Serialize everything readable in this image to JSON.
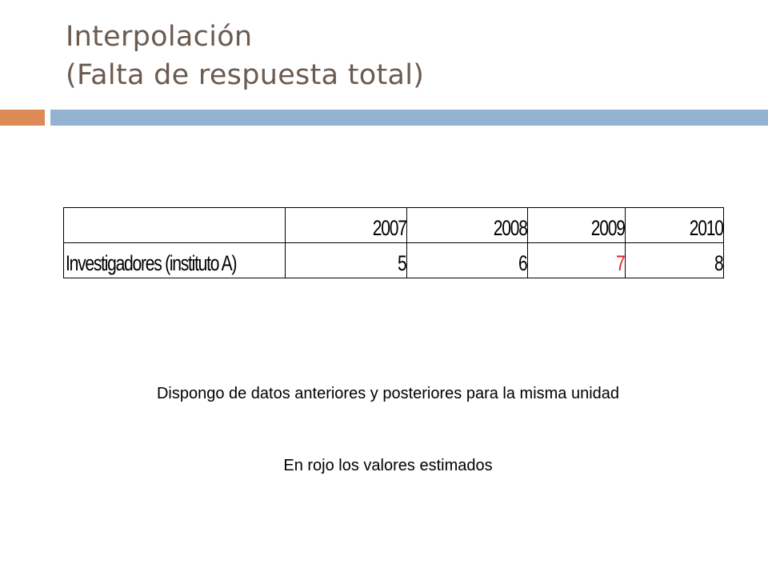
{
  "slide": {
    "title_line1": "Interpolación",
    "title_line2": "(Falta de respuesta total)"
  },
  "table": {
    "header": [
      "",
      "2007",
      "2008",
      "2009",
      "2010"
    ],
    "row": {
      "label": "Investigadores (instituto A)",
      "values": [
        "5",
        "6",
        "7",
        "8"
      ]
    },
    "estimated_color": "#e0201b"
  },
  "notes": {
    "line1": "Dispongo de datos anteriores y posteriores para la misma unidad",
    "line2": "En rojo los valores estimados"
  },
  "colors": {
    "title": "#6b5a4f",
    "accent_orange": "#dc8a56",
    "accent_blue": "#94b2d2"
  }
}
